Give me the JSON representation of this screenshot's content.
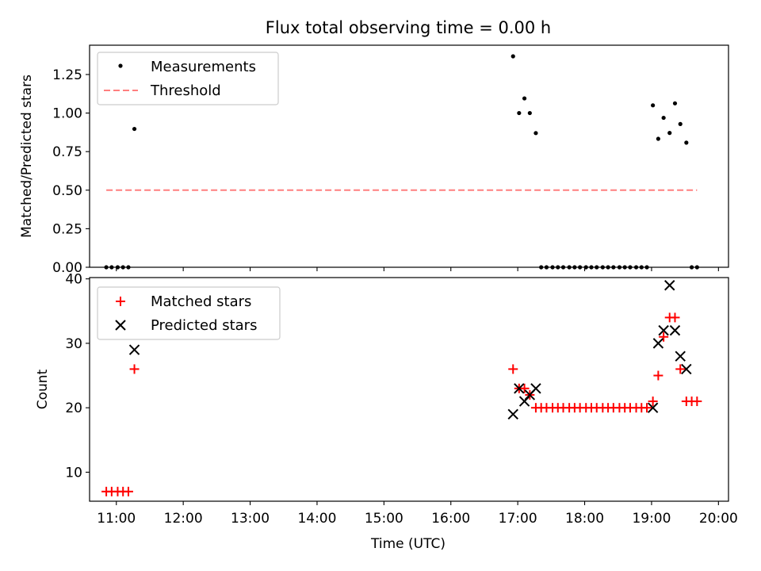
{
  "chart_data": {
    "title": "Flux total observing time = 0.00 h",
    "xlabel": "Time (UTC)",
    "x_unit": "hours (UTC)",
    "xlim": [
      10.6,
      20.15
    ],
    "xticks": [
      {
        "v": 11,
        "label": "11:00"
      },
      {
        "v": 12,
        "label": "12:00"
      },
      {
        "v": 13,
        "label": "13:00"
      },
      {
        "v": 14,
        "label": "14:00"
      },
      {
        "v": 15,
        "label": "15:00"
      },
      {
        "v": 16,
        "label": "16:00"
      },
      {
        "v": 17,
        "label": "17:00"
      },
      {
        "v": 18,
        "label": "18:00"
      },
      {
        "v": 19,
        "label": "19:00"
      },
      {
        "v": 20,
        "label": "20:00"
      }
    ],
    "top": {
      "type": "scatter",
      "ylabel": "Matched/Predicted stars",
      "ylim": [
        0,
        1.44
      ],
      "yticks": [
        {
          "v": 0.0,
          "label": "0.00"
        },
        {
          "v": 0.25,
          "label": "0.25"
        },
        {
          "v": 0.5,
          "label": "0.50"
        },
        {
          "v": 0.75,
          "label": "0.75"
        },
        {
          "v": 1.0,
          "label": "1.00"
        },
        {
          "v": 1.25,
          "label": "1.25"
        }
      ],
      "legend_position": "upper-left",
      "legend": [
        {
          "label": "Measurements",
          "marker": "dot",
          "color": "#000000"
        },
        {
          "label": "Threshold",
          "marker": "dashed-line",
          "color": "#ff7f7f"
        }
      ],
      "measurements": {
        "x": [
          10.85,
          10.93,
          11.02,
          11.1,
          11.18,
          11.27,
          16.93,
          17.02,
          17.1,
          17.18,
          17.27,
          17.35,
          17.43,
          17.52,
          17.6,
          17.68,
          17.77,
          17.85,
          17.93,
          18.02,
          18.1,
          18.18,
          18.27,
          18.35,
          18.43,
          18.52,
          18.6,
          18.68,
          18.77,
          18.85,
          18.93,
          19.02,
          19.1,
          19.18,
          19.27,
          19.35,
          19.43,
          19.52,
          19.6,
          19.68
        ],
        "y": [
          0,
          0,
          0,
          0,
          0,
          0.897,
          1.368,
          1.0,
          1.095,
          1.0,
          0.87,
          0,
          0,
          0,
          0,
          0,
          0,
          0,
          0,
          0,
          0,
          0,
          0,
          0,
          0,
          0,
          0,
          0,
          0,
          0,
          0,
          1.05,
          0.833,
          0.969,
          0.871,
          1.063,
          0.929,
          0.808,
          0,
          0
        ],
        "color": "#000000"
      },
      "threshold": {
        "x": [
          10.85,
          19.68
        ],
        "y": 0.5,
        "color": "#ff7f7f"
      }
    },
    "bottom": {
      "type": "scatter",
      "ylabel": "Count",
      "ylim": [
        5.5,
        40.2
      ],
      "yticks": [
        {
          "v": 10,
          "label": "10"
        },
        {
          "v": 20,
          "label": "20"
        },
        {
          "v": 30,
          "label": "30"
        },
        {
          "v": 40,
          "label": "40"
        }
      ],
      "legend_position": "upper-left",
      "series": [
        {
          "name": "Matched stars",
          "marker": "plus",
          "color": "#ff0000",
          "x": [
            10.85,
            10.93,
            11.02,
            11.1,
            11.18,
            11.27,
            16.93,
            17.02,
            17.1,
            17.18,
            17.27,
            17.35,
            17.43,
            17.52,
            17.6,
            17.68,
            17.77,
            17.85,
            17.93,
            18.02,
            18.1,
            18.18,
            18.27,
            18.35,
            18.43,
            18.52,
            18.6,
            18.68,
            18.77,
            18.85,
            18.93,
            19.02,
            19.1,
            19.18,
            19.27,
            19.35,
            19.43,
            19.52,
            19.6,
            19.68
          ],
          "y": [
            7,
            7,
            7,
            7,
            7,
            26,
            26,
            23,
            23,
            22,
            20,
            20,
            20,
            20,
            20,
            20,
            20,
            20,
            20,
            20,
            20,
            20,
            20,
            20,
            20,
            20,
            20,
            20,
            20,
            20,
            20,
            21,
            25,
            31,
            34,
            34,
            26,
            21,
            21,
            21
          ]
        },
        {
          "name": "Predicted stars",
          "marker": "x",
          "color": "#000000",
          "x": [
            11.27,
            16.93,
            17.02,
            17.1,
            17.18,
            17.27,
            19.02,
            19.1,
            19.18,
            19.27,
            19.35,
            19.43,
            19.52
          ],
          "y": [
            29,
            19,
            23,
            21,
            22,
            23,
            20,
            30,
            32,
            39,
            32,
            28,
            26
          ]
        }
      ]
    }
  }
}
